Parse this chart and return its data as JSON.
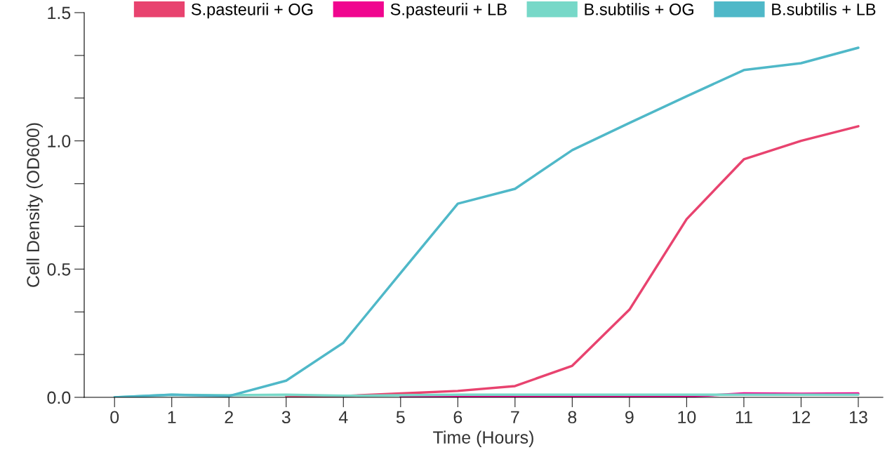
{
  "chart_data": {
    "type": "line",
    "xlabel": "Time (Hours)",
    "ylabel": "Cell Density (OD600)",
    "x": [
      0,
      1,
      2,
      3,
      4,
      5,
      6,
      7,
      8,
      9,
      10,
      11,
      12,
      13
    ],
    "series": [
      {
        "name": "S.pasteurii + OG",
        "color": "#e8436f",
        "values": [
          null,
          null,
          null,
          0.005,
          0.005,
          0.015,
          0.025,
          0.044,
          0.123,
          0.342,
          0.695,
          0.928,
          1.0,
          1.057
        ]
      },
      {
        "name": "S.pasteurii + LB",
        "color": "#f0068f",
        "values": [
          null,
          null,
          null,
          null,
          null,
          0.002,
          0.002,
          0.002,
          0.002,
          0.002,
          0.003,
          0.015,
          0.014,
          0.015
        ]
      },
      {
        "name": "B.subtilis + OG",
        "color": "#77d8c8",
        "values": [
          0.0,
          0.01,
          0.008,
          0.01,
          0.006,
          0.008,
          0.01,
          0.01,
          0.01,
          0.01,
          0.01,
          0.01,
          0.01,
          0.01
        ]
      },
      {
        "name": "B.subtilis + LB",
        "color": "#4fb8c8",
        "values": [
          0.0,
          0.01,
          0.005,
          0.065,
          0.213,
          0.485,
          0.755,
          0.813,
          0.964,
          1.07,
          1.174,
          1.276,
          1.303,
          1.363
        ]
      }
    ],
    "xlim": [
      -0.53,
      13.43
    ],
    "xticks": [
      0,
      1,
      2,
      3,
      4,
      5,
      6,
      7,
      8,
      9,
      10,
      11,
      12,
      13
    ],
    "ylim": [
      0,
      1.5
    ],
    "yticks": [
      {
        "value": 0,
        "label": "0.0"
      },
      {
        "value": 0.167,
        "label": null
      },
      {
        "value": 0.333,
        "label": null
      },
      {
        "value": 0.5,
        "label": "0.5"
      },
      {
        "value": 0.667,
        "label": null
      },
      {
        "value": 0.833,
        "label": null
      },
      {
        "value": 1.0,
        "label": "1.0"
      },
      {
        "value": 1.167,
        "label": null
      },
      {
        "value": 1.333,
        "label": null
      },
      {
        "value": 1.5,
        "label": "1.5"
      }
    ],
    "grid": false,
    "legend": "top right",
    "marker": "none",
    "line_style": "solid"
  }
}
